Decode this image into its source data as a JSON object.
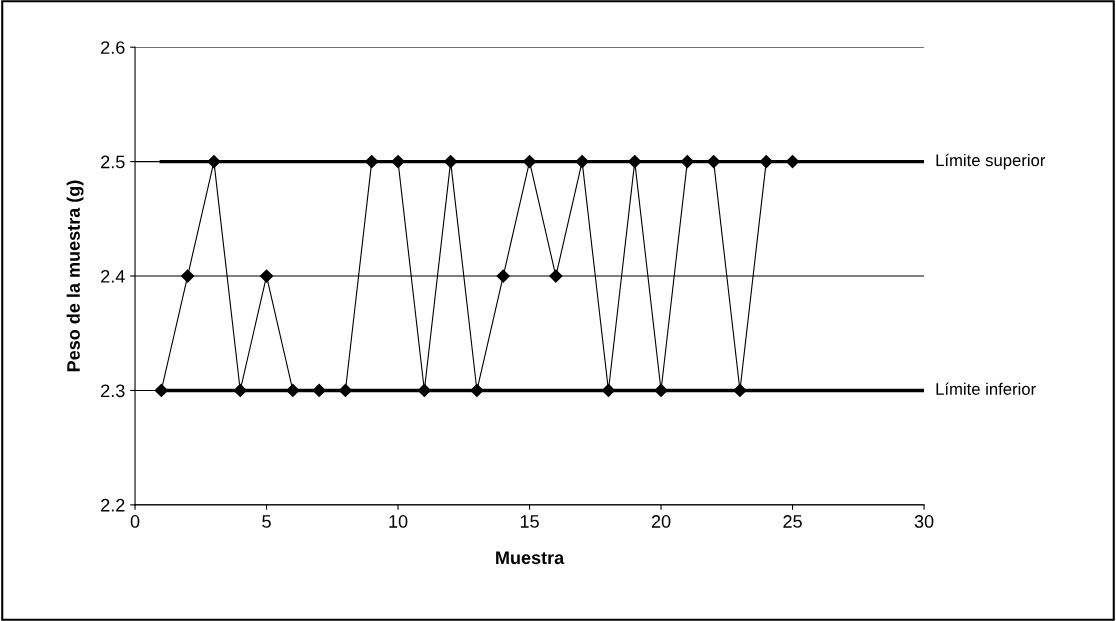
{
  "chart_data": {
    "type": "line",
    "xlabel": "Muestra",
    "ylabel": "Peso de la muestra (g)",
    "xlim": [
      0,
      30
    ],
    "xticks": [
      0,
      5,
      10,
      15,
      20,
      25,
      30
    ],
    "ylim": [
      2.2,
      2.6
    ],
    "yticks": [
      2.2,
      2.3,
      2.4,
      2.5,
      2.6
    ],
    "grid": "y",
    "legend": false,
    "series": [
      {
        "x": [
          1,
          2,
          3,
          4,
          5,
          6,
          7,
          8,
          9,
          10,
          11,
          12,
          13,
          14,
          15,
          16,
          17,
          18,
          19,
          20,
          21,
          22,
          23,
          24,
          25
        ],
        "values": [
          2.3,
          2.4,
          2.5,
          2.3,
          2.4,
          2.3,
          2.3,
          2.3,
          2.5,
          2.5,
          2.3,
          2.5,
          2.3,
          2.4,
          2.5,
          2.4,
          2.5,
          2.3,
          2.5,
          2.3,
          2.5,
          2.5,
          2.3,
          2.5,
          2.5
        ],
        "color": "#000000",
        "marker": "diamond",
        "line_style": "solid"
      },
      {
        "name": "Límite superior",
        "x": [
          1,
          30
        ],
        "values": [
          2.5,
          2.5
        ],
        "color": "#000000",
        "marker": "none",
        "line_style": "solid"
      },
      {
        "name": "Límite inferior",
        "x": [
          1,
          30
        ],
        "values": [
          2.3,
          2.3
        ],
        "color": "#000000",
        "marker": "none",
        "line_style": "solid"
      }
    ]
  }
}
